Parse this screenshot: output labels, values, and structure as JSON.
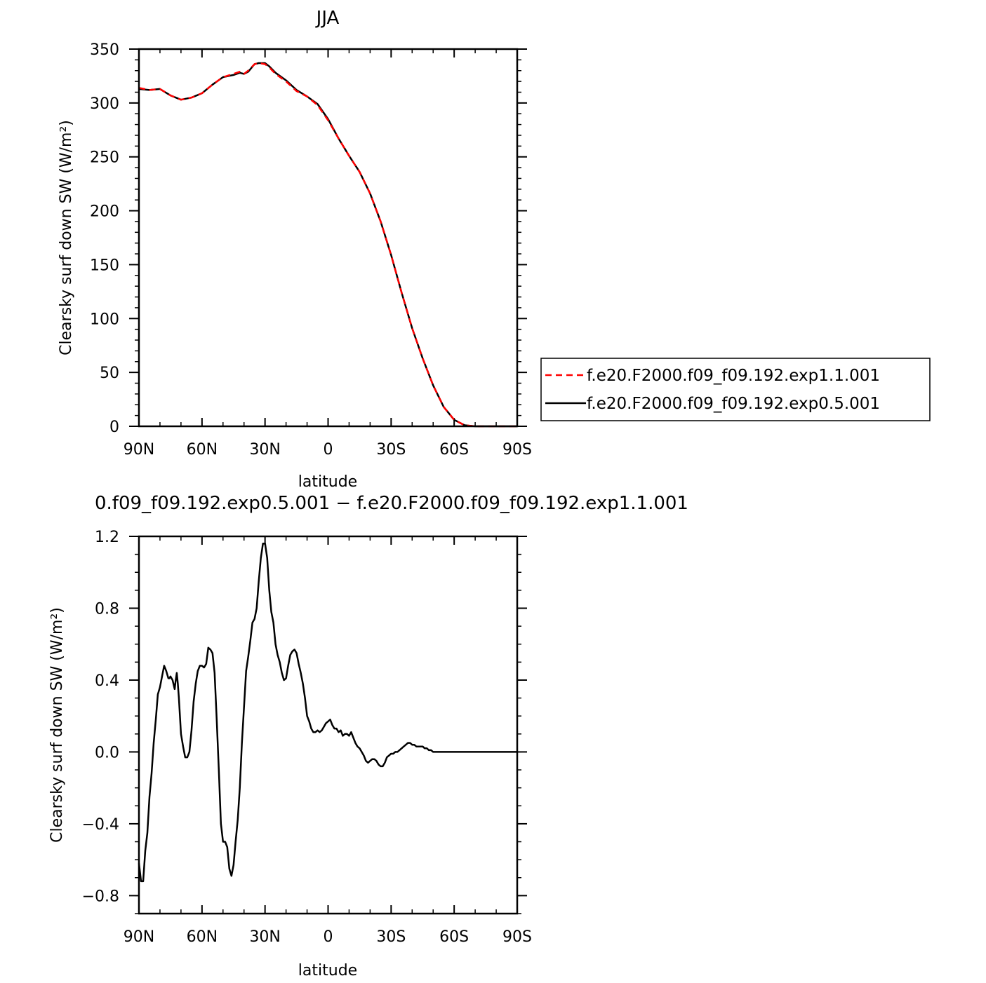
{
  "chart_data": [
    {
      "type": "line",
      "title": "JJA",
      "xlabel": "latitude",
      "ylabel": "Clearsky surf down SW (W/m²)",
      "xlim": [
        -90,
        90
      ],
      "ylim": [
        0,
        350
      ],
      "xticks": [
        -90,
        -60,
        -30,
        0,
        30,
        60,
        90
      ],
      "xtick_labels": [
        "90N",
        "60N",
        "30N",
        "0",
        "30S",
        "60S",
        "90S"
      ],
      "yticks": [
        0,
        50,
        100,
        150,
        200,
        250,
        300,
        350
      ],
      "ytick_labels": [
        "0",
        "50",
        "100",
        "150",
        "200",
        "250",
        "300",
        "350"
      ],
      "legend": "right",
      "series": [
        {
          "name": "f.e20.F2000.f09_f09.192.exp1.1.001",
          "color": "#ff0000",
          "dash": "dashed",
          "x": [
            -90,
            -85,
            -80,
            -75,
            -70,
            -65,
            -60,
            -55,
            -50,
            -45,
            -42,
            -40,
            -38,
            -35,
            -33,
            -30,
            -28,
            -25,
            -20,
            -15,
            -10,
            -5,
            0,
            5,
            10,
            15,
            20,
            25,
            30,
            35,
            40,
            45,
            50,
            55,
            60,
            65,
            70,
            75,
            80,
            85,
            90
          ],
          "y": [
            314,
            312,
            313,
            307,
            303,
            305,
            309,
            317,
            324,
            327,
            329,
            327,
            330,
            336,
            337,
            336,
            333,
            327,
            320,
            311,
            306,
            298,
            284,
            267,
            251,
            236,
            216,
            190,
            159,
            124,
            91,
            63,
            38,
            18,
            6,
            1,
            0,
            0,
            0,
            0,
            0
          ]
        },
        {
          "name": "f.e20.F2000.f09_f09.192.exp0.5.001",
          "color": "#000000",
          "dash": "solid",
          "x": [
            -90,
            -85,
            -80,
            -75,
            -70,
            -65,
            -60,
            -55,
            -50,
            -45,
            -42,
            -40,
            -38,
            -35,
            -33,
            -30,
            -28,
            -25,
            -20,
            -15,
            -10,
            -5,
            0,
            5,
            10,
            15,
            20,
            25,
            30,
            35,
            40,
            45,
            50,
            55,
            60,
            65,
            70,
            75,
            80,
            85,
            90
          ],
          "y": [
            313,
            312,
            313,
            307,
            303,
            305,
            309,
            317,
            324,
            326,
            328,
            327,
            329,
            336,
            337,
            337,
            334,
            328,
            321,
            312,
            306,
            299,
            285,
            267,
            251,
            236,
            216,
            190,
            159,
            124,
            91,
            63,
            38,
            18,
            6,
            1,
            0,
            0,
            0,
            0,
            0
          ]
        }
      ]
    },
    {
      "type": "line",
      "title": "0.f09_f09.192.exp0.5.001 − f.e20.F2000.f09_f09.192.exp1.1.001",
      "xlabel": "latitude",
      "ylabel": "Clearsky surf down SW (W/m²)",
      "xlim": [
        -90,
        90
      ],
      "ylim": [
        -0.9,
        1.2
      ],
      "xticks": [
        -90,
        -60,
        -30,
        0,
        30,
        60,
        90
      ],
      "xtick_labels": [
        "90N",
        "60N",
        "30N",
        "0",
        "30S",
        "60S",
        "90S"
      ],
      "yticks": [
        -0.8,
        -0.4,
        0.0,
        0.4,
        0.8,
        1.2
      ],
      "ytick_labels": [
        "−0.8",
        "−0.4",
        "0.0",
        "0.4",
        "0.8",
        "1.2"
      ],
      "series": [
        {
          "color": "#000000",
          "x": [
            -90,
            -89,
            -88,
            -87,
            -86,
            -85,
            -84,
            -83,
            -82,
            -81,
            -80,
            -79,
            -78,
            -77,
            -76,
            -75.5,
            -75,
            -74,
            -73,
            -72.5,
            -72,
            -71.5,
            -71,
            -70,
            -69,
            -68,
            -67,
            -66,
            -65,
            -64,
            -63,
            -62,
            -61,
            -60,
            -59,
            -58,
            -57,
            -56,
            -55,
            -54,
            -53,
            -52,
            -51,
            -50,
            -49,
            -48,
            -47,
            -46,
            -45,
            -44,
            -43,
            -42,
            -41,
            -40,
            -39,
            -38,
            -37,
            -36,
            -35,
            -34,
            -33,
            -32,
            -31,
            -30,
            -29,
            -28,
            -27,
            -26,
            -25,
            -24,
            -23,
            -22,
            -21,
            -20,
            -19,
            -18,
            -17,
            -16,
            -15,
            -14,
            -13,
            -12,
            -11,
            -10,
            -9,
            -8,
            -7,
            -6,
            -5,
            -4,
            -3,
            -2,
            -1,
            0,
            1,
            2,
            3,
            4,
            5,
            6,
            7,
            8,
            9,
            10,
            11,
            12,
            13,
            14,
            15,
            16,
            17,
            18,
            19,
            20,
            21,
            22,
            23,
            24,
            25,
            26,
            27,
            28,
            29,
            30,
            31,
            32,
            33,
            34,
            35,
            36,
            37,
            38,
            39,
            40,
            41,
            42,
            43,
            44,
            45,
            46,
            47,
            48,
            49,
            50,
            51,
            52,
            53,
            54,
            55,
            56,
            57,
            58,
            59,
            60,
            61,
            62,
            63,
            64,
            65,
            66,
            67,
            68,
            69,
            70,
            71,
            72,
            73,
            74,
            75,
            76,
            77,
            78,
            79,
            80,
            82,
            84,
            86,
            88,
            90
          ],
          "y": [
            -0.62,
            -0.72,
            -0.72,
            -0.55,
            -0.45,
            -0.25,
            -0.12,
            0.05,
            0.18,
            0.32,
            0.36,
            0.42,
            0.48,
            0.45,
            0.41,
            0.41,
            0.42,
            0.4,
            0.35,
            0.4,
            0.44,
            0.38,
            0.3,
            0.1,
            0.03,
            -0.03,
            -0.03,
            0.0,
            0.12,
            0.28,
            0.38,
            0.45,
            0.48,
            0.48,
            0.47,
            0.49,
            0.58,
            0.57,
            0.55,
            0.44,
            0.18,
            -0.1,
            -0.4,
            -0.5,
            -0.5,
            -0.53,
            -0.65,
            -0.69,
            -0.63,
            -0.5,
            -0.38,
            -0.2,
            0.05,
            0.25,
            0.45,
            0.53,
            0.62,
            0.72,
            0.74,
            0.8,
            0.95,
            1.08,
            1.16,
            1.16,
            1.08,
            0.9,
            0.78,
            0.72,
            0.6,
            0.54,
            0.5,
            0.44,
            0.4,
            0.41,
            0.48,
            0.54,
            0.56,
            0.57,
            0.55,
            0.49,
            0.44,
            0.38,
            0.3,
            0.2,
            0.17,
            0.13,
            0.11,
            0.11,
            0.12,
            0.11,
            0.12,
            0.14,
            0.16,
            0.17,
            0.18,
            0.15,
            0.13,
            0.13,
            0.11,
            0.12,
            0.09,
            0.1,
            0.1,
            0.09,
            0.11,
            0.08,
            0.05,
            0.03,
            0.02,
            0.0,
            -0.02,
            -0.05,
            -0.06,
            -0.05,
            -0.04,
            -0.04,
            -0.05,
            -0.07,
            -0.08,
            -0.08,
            -0.06,
            -0.03,
            -0.02,
            -0.01,
            -0.01,
            0.0,
            0.0,
            0.01,
            0.02,
            0.03,
            0.04,
            0.05,
            0.05,
            0.04,
            0.04,
            0.03,
            0.03,
            0.03,
            0.03,
            0.02,
            0.02,
            0.01,
            0.01,
            0.0,
            0.0,
            0.0,
            0.0,
            0.0,
            0.0,
            0.0,
            0.0,
            0.0,
            0.0,
            0.0,
            0.0,
            0.0,
            0.0,
            0.0,
            0.0,
            0.0,
            0.0,
            0.0,
            0.0,
            0.0,
            0.0,
            0.0,
            0.0,
            0.0,
            0.0,
            0.0,
            0.0,
            0.0,
            0.0,
            0.0,
            0.0,
            0.0,
            0.0,
            0.0,
            0.0
          ]
        }
      ]
    }
  ]
}
